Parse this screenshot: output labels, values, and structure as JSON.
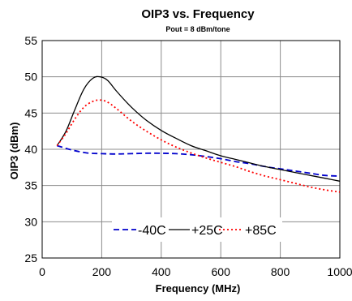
{
  "chart_data": {
    "type": "line",
    "title": "OIP3 vs. Frequency",
    "subtitle": "Pout = 8 dBm/tone",
    "xlabel": "Frequency (MHz)",
    "ylabel": "OIP3 (dBm)",
    "xlim": [
      0,
      1000
    ],
    "ylim": [
      25,
      55
    ],
    "xticks": [
      0,
      200,
      400,
      600,
      800,
      1000
    ],
    "yticks": [
      25,
      30,
      35,
      40,
      45,
      50,
      55
    ],
    "xtick_labels": [
      "0",
      "200",
      "400",
      "600",
      "800",
      "1000"
    ],
    "ytick_labels": [
      "25",
      "30",
      "35",
      "40",
      "45",
      "50",
      "55"
    ],
    "grid": true,
    "legend_position": "bottom-center",
    "series": [
      {
        "name": "-40C",
        "color": "#0000cc",
        "style": "dashed",
        "x": [
          50,
          100,
          150,
          200,
          250,
          300,
          350,
          400,
          450,
          500,
          550,
          600,
          650,
          700,
          750,
          800,
          850,
          900,
          950,
          1000
        ],
        "y": [
          40.5,
          39.9,
          39.5,
          39.4,
          39.35,
          39.4,
          39.45,
          39.45,
          39.4,
          39.25,
          39.0,
          38.7,
          38.3,
          38.0,
          37.6,
          37.3,
          37.0,
          36.7,
          36.4,
          36.3
        ]
      },
      {
        "name": "+25C",
        "color": "#000000",
        "style": "solid",
        "x": [
          50,
          80,
          110,
          140,
          170,
          195,
          220,
          250,
          300,
          350,
          400,
          450,
          500,
          550,
          600,
          650,
          700,
          750,
          800,
          850,
          900,
          950,
          1000
        ],
        "y": [
          40.5,
          42.5,
          45.5,
          48.3,
          49.8,
          50.0,
          49.5,
          48.0,
          45.8,
          44.0,
          42.6,
          41.5,
          40.5,
          39.8,
          39.1,
          38.6,
          38.1,
          37.6,
          37.2,
          36.8,
          36.4,
          36.0,
          35.6
        ]
      },
      {
        "name": "+85C",
        "color": "#ff0000",
        "style": "dotted",
        "x": [
          50,
          80,
          110,
          140,
          170,
          195,
          220,
          250,
          300,
          350,
          400,
          450,
          500,
          550,
          600,
          650,
          700,
          750,
          800,
          850,
          900,
          950,
          1000
        ],
        "y": [
          40.5,
          42.2,
          44.2,
          45.8,
          46.6,
          46.8,
          46.5,
          45.6,
          43.9,
          42.5,
          41.3,
          40.3,
          39.5,
          38.8,
          38.2,
          37.6,
          36.9,
          36.3,
          35.8,
          35.3,
          34.8,
          34.4,
          34.1
        ]
      }
    ]
  }
}
